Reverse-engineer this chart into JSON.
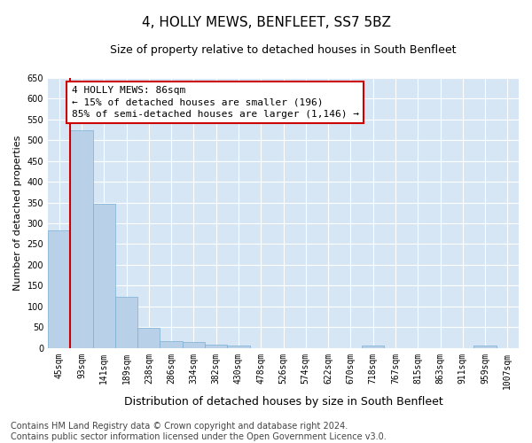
{
  "title": "4, HOLLY MEWS, BENFLEET, SS7 5BZ",
  "subtitle": "Size of property relative to detached houses in South Benfleet",
  "xlabel": "Distribution of detached houses by size in South Benfleet",
  "ylabel": "Number of detached properties",
  "categories": [
    "45sqm",
    "93sqm",
    "141sqm",
    "189sqm",
    "238sqm",
    "286sqm",
    "334sqm",
    "382sqm",
    "430sqm",
    "478sqm",
    "526sqm",
    "574sqm",
    "622sqm",
    "670sqm",
    "718sqm",
    "767sqm",
    "815sqm",
    "863sqm",
    "911sqm",
    "959sqm",
    "1007sqm"
  ],
  "values": [
    283,
    524,
    346,
    122,
    49,
    17,
    15,
    8,
    5,
    0,
    0,
    0,
    0,
    0,
    5,
    0,
    0,
    0,
    0,
    5,
    0
  ],
  "bar_color": "#b8d0e8",
  "bar_edge_color": "#7aafd4",
  "annotation_box_color": "#cc0000",
  "annotation_line_color": "#cc0000",
  "annotation_line1": "4 HOLLY MEWS: 86sqm",
  "annotation_line2": "← 15% of detached houses are smaller (196)",
  "annotation_line3": "85% of semi-detached houses are larger (1,146) →",
  "ylim": [
    0,
    650
  ],
  "yticks": [
    0,
    50,
    100,
    150,
    200,
    250,
    300,
    350,
    400,
    450,
    500,
    550,
    600,
    650
  ],
  "footnote": "Contains HM Land Registry data © Crown copyright and database right 2024.\nContains public sector information licensed under the Open Government Licence v3.0.",
  "plot_bg_color": "#d6e6f5",
  "fig_bg_color": "#ffffff",
  "grid_color": "#ffffff",
  "title_fontsize": 11,
  "subtitle_fontsize": 9,
  "xlabel_fontsize": 9,
  "ylabel_fontsize": 8,
  "tick_fontsize": 7,
  "footnote_fontsize": 7,
  "annot_fontsize": 8
}
